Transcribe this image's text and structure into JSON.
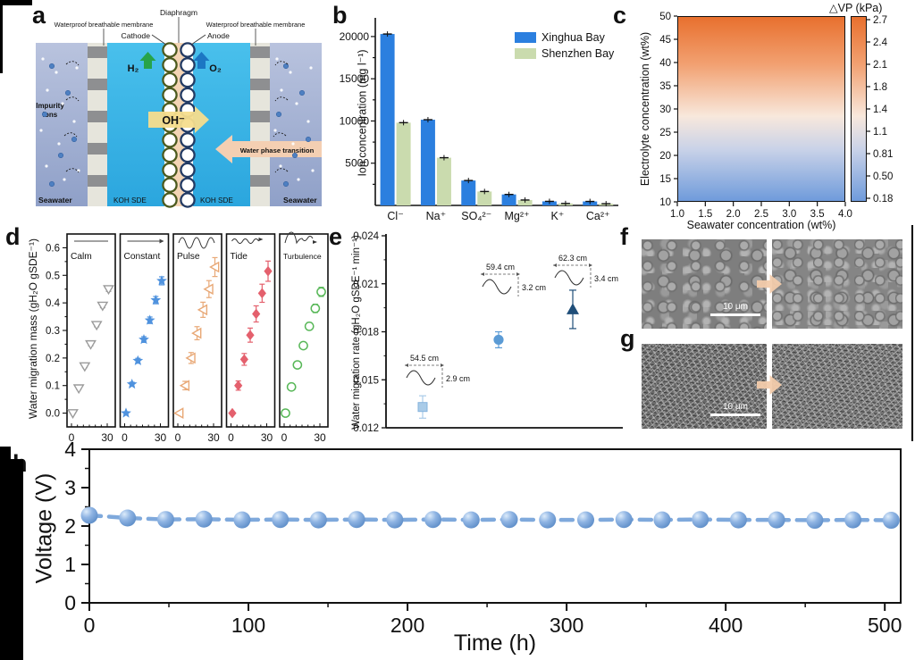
{
  "panels": {
    "a": "a",
    "b": "b",
    "c": "c",
    "d": "d",
    "e": "e",
    "f": "f",
    "g": "g",
    "h": "h"
  },
  "panel_a": {
    "diaphragm": "Diaphragm",
    "membrane_left": "Waterproof breathable membrane",
    "membrane_right": "Waterproof breathable membrane",
    "cathode": "Cathode",
    "anode": "Anode",
    "h2": "H₂",
    "o2": "O₂",
    "oh": "OH⁻",
    "impurity_line1": "Impurity",
    "impurity_line2": "ions",
    "water_phase": "Water phase transition",
    "seawater_left": "Seawater",
    "seawater_right": "Seawater",
    "koh_left": "KOH SDE",
    "koh_right": "KOH SDE",
    "colors": {
      "seawater_top": "#b9c3de",
      "seawater_bottom": "#8fa0c8",
      "membrane": "#e6e5dc",
      "block": "#8e8f91",
      "koh_top": "#49c0ec",
      "koh_bottom": "#2ba6de",
      "diaphragm": "#f3d4b4",
      "cathode_ring": "#4c5a1e",
      "anode_ring": "#223a63",
      "h2": "#27a34a",
      "o2": "#1c77c3",
      "oh_arrow": "#f6dd8d",
      "phase_arrow": "#f4cfb2"
    }
  },
  "chart_data": [
    {
      "id": "b",
      "type": "bar",
      "ylabel": "Ion concentration (mg l⁻¹)",
      "ylim": [
        0,
        22000
      ],
      "yticks": [
        5000,
        10000,
        15000,
        20000
      ],
      "categories": [
        "Cl⁻",
        "Na⁺",
        "SO₄²⁻",
        "Mg²⁺",
        "K⁺",
        "Ca²⁺"
      ],
      "series": [
        {
          "name": "Xinghua Bay",
          "color": "#2b7fdf",
          "values": [
            20300,
            10150,
            2950,
            1300,
            480,
            470
          ]
        },
        {
          "name": "Shenzhen Bay",
          "color": "#cadbae",
          "values": [
            9800,
            5650,
            1650,
            640,
            230,
            200
          ]
        }
      ],
      "legend_position": "top-right",
      "grid": false
    },
    {
      "id": "c",
      "type": "heatmap",
      "xlabel": "Seawater concentration (wt%)",
      "ylabel": "Electrolyte concentration (wt%)",
      "xticks": [
        "1.0",
        "1.5",
        "2.0",
        "2.5",
        "3.0",
        "3.5",
        "4.0"
      ],
      "yticks": [
        "50",
        "45",
        "40",
        "35",
        "30",
        "25",
        "20",
        "15",
        "10"
      ],
      "colorbar": {
        "title": "△VP (kPa)",
        "ticks": [
          "2.7",
          "2.4",
          "2.1",
          "1.8",
          "1.4",
          "1.1",
          "0.81",
          "0.50",
          "0.18"
        ]
      },
      "gradient": [
        "#e8702e",
        "#f2a172",
        "#f8e8dc",
        "#c9d2e8",
        "#6f9bdb"
      ],
      "description": "Vapor pressure difference increases with electrolyte concentration, nearly independent of seawater concentration"
    },
    {
      "id": "d",
      "type": "scatter",
      "ylabel": "Water migration mass (gH₂O gSDE⁻¹)",
      "xlim": [
        0,
        33
      ],
      "ylim": [
        -0.05,
        0.65
      ],
      "yticks": [
        "0.0",
        "0.1",
        "0.2",
        "0.3",
        "0.4",
        "0.5",
        "0.6"
      ],
      "xticks": [
        "0",
        "30"
      ],
      "x": [
        0,
        5,
        10,
        15,
        20,
        25,
        30
      ],
      "series": [
        {
          "name": "Calm",
          "marker": "triangle-down-open",
          "color": "#9b9b9b",
          "icon": "flat",
          "errbase": 0.006,
          "values": [
            0.0,
            0.09,
            0.17,
            0.25,
            0.32,
            0.39,
            0.45
          ]
        },
        {
          "name": "Constant",
          "marker": "star",
          "color": "#4f92de",
          "icon": "arrow",
          "errbase": 0.01,
          "values": [
            0.0,
            0.105,
            0.19,
            0.267,
            0.337,
            0.41,
            0.48
          ]
        },
        {
          "name": "Pulse",
          "marker": "triangle-left-open",
          "color": "#e8a876",
          "icon": "pulse",
          "errbase": 0.022,
          "values": [
            0.0,
            0.1,
            0.2,
            0.29,
            0.375,
            0.45,
            0.53
          ]
        },
        {
          "name": "Tide",
          "marker": "diamond",
          "color": "#e4606d",
          "icon": "tide",
          "errbase": 0.024,
          "values": [
            0.0,
            0.1,
            0.195,
            0.283,
            0.36,
            0.435,
            0.515
          ]
        },
        {
          "name": "Turbulence",
          "marker": "circle-open",
          "color": "#57b757",
          "icon": "turbulence",
          "errbase": 0.012,
          "values": [
            0.0,
            0.095,
            0.175,
            0.245,
            0.315,
            0.38,
            0.44
          ]
        }
      ]
    },
    {
      "id": "e",
      "type": "scatter",
      "ylabel": "Water migration rate (gH₂O gSDE⁻¹ min⁻¹)",
      "ylim": [
        0.012,
        0.024
      ],
      "yticks": [
        "0.012",
        "0.015",
        "0.018",
        "0.021",
        "0.024"
      ],
      "points": [
        {
          "y": 0.0133,
          "err": 0.0007,
          "marker": "square",
          "color": "#a9cbe8",
          "wave_length": "54.5 cm",
          "wave_height": "2.9 cm"
        },
        {
          "y": 0.0175,
          "err": 0.0005,
          "marker": "circle",
          "color": "#5b9bd5",
          "wave_length": "59.4 cm",
          "wave_height": "3.2 cm"
        },
        {
          "y": 0.0194,
          "err": 0.0012,
          "marker": "triangle-up",
          "color": "#1f4e79",
          "wave_length": "62.3 cm",
          "wave_height": "3.4 cm"
        }
      ]
    },
    {
      "id": "h",
      "type": "line",
      "xlabel": "Time (h)",
      "ylabel": "Voltage (V)",
      "xlim": [
        0,
        510
      ],
      "ylim": [
        0,
        4
      ],
      "xticks": [
        0,
        100,
        200,
        300,
        400,
        500
      ],
      "yticks": [
        0,
        1,
        2,
        3,
        4
      ],
      "marker_color": "#6798d3",
      "line_color": "#7fa9dc",
      "x": [
        0,
        24,
        48,
        72,
        96,
        120,
        144,
        168,
        192,
        216,
        240,
        264,
        288,
        312,
        336,
        360,
        384,
        408,
        432,
        456,
        480,
        504
      ],
      "y": [
        2.28,
        2.21,
        2.17,
        2.18,
        2.16,
        2.17,
        2.16,
        2.17,
        2.16,
        2.17,
        2.16,
        2.17,
        2.16,
        2.16,
        2.17,
        2.16,
        2.17,
        2.16,
        2.16,
        2.15,
        2.16,
        2.15
      ]
    }
  ],
  "sem": {
    "f_scale": "10 μm",
    "g_scale": "10 μm"
  }
}
